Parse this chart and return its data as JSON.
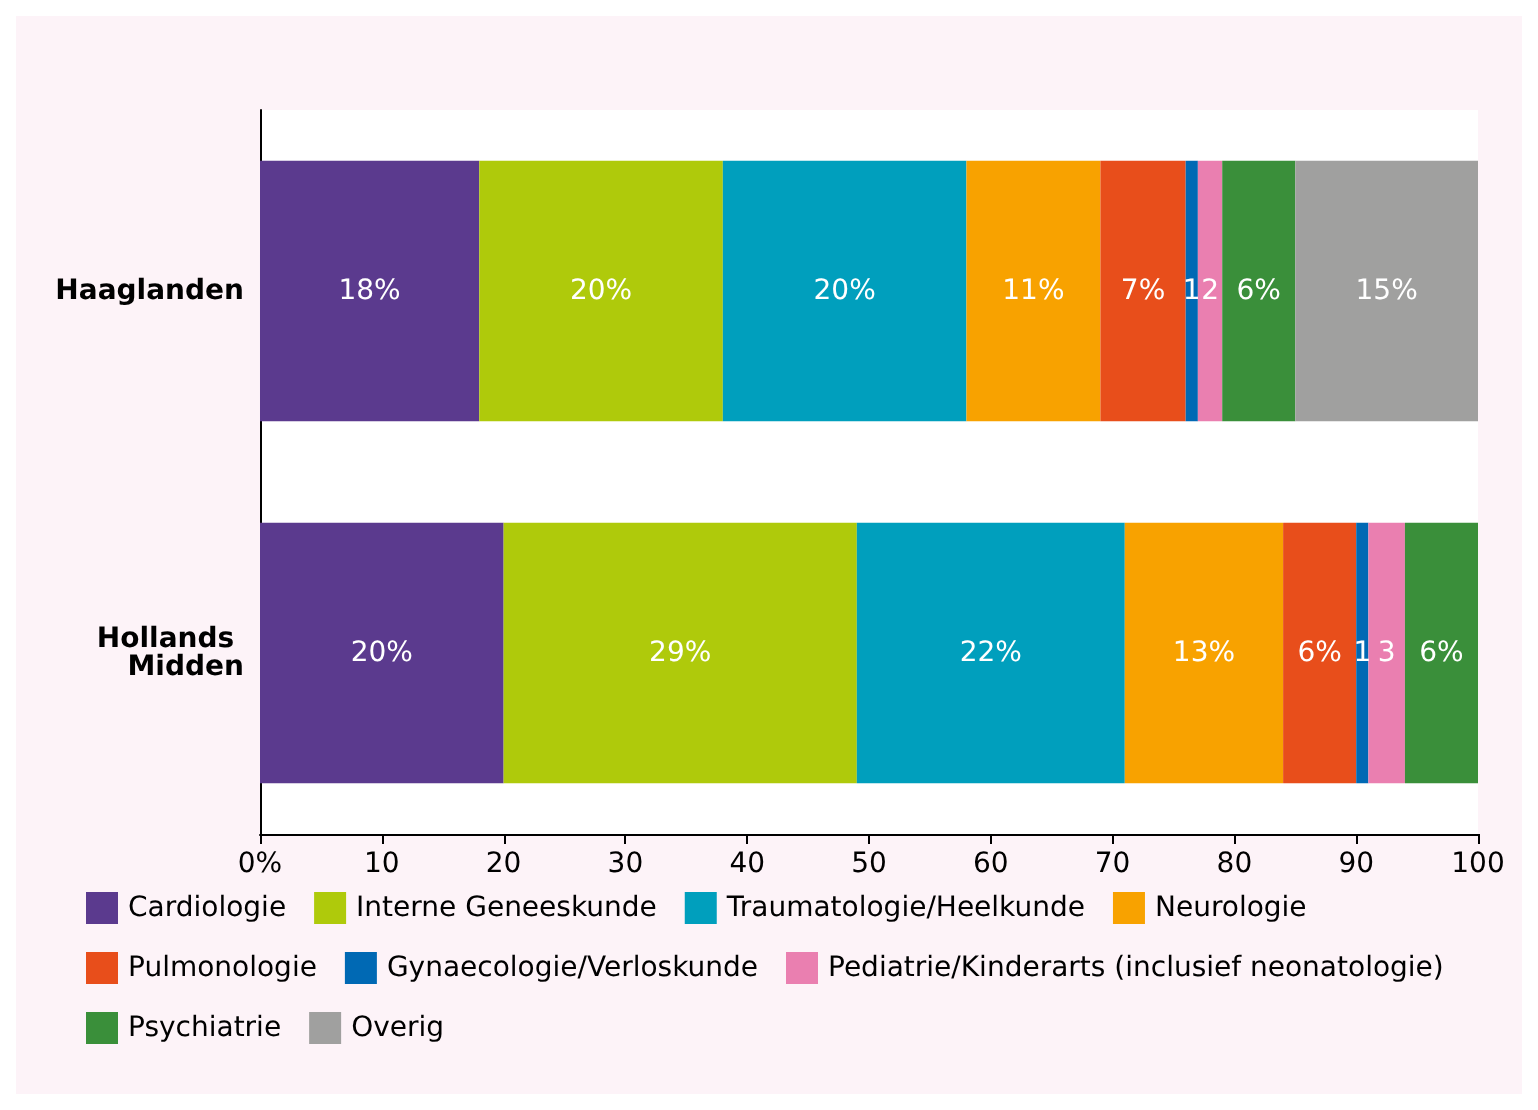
{
  "chart_data": {
    "type": "bar",
    "orientation": "horizontal",
    "stacked": true,
    "categories": [
      "Haaglanden",
      "Hollands Midden"
    ],
    "xlim": [
      0,
      100
    ],
    "xticks": [
      {
        "value": 0,
        "label": "0%"
      },
      10,
      20,
      30,
      40,
      50,
      60,
      70,
      80,
      90,
      100
    ],
    "grid": false,
    "legend": "bottom",
    "series": [
      {
        "name": "Cardiologie",
        "color": "#5b3a8e",
        "values": [
          18,
          20
        ],
        "value_labels": [
          "18%",
          "20%"
        ]
      },
      {
        "name": "Interne Geneeskunde",
        "color": "#afca0b",
        "values": [
          20,
          29
        ],
        "value_labels": [
          "20%",
          "29%"
        ]
      },
      {
        "name": "Traumatologie/Heelkunde",
        "color": "#009fbd",
        "values": [
          20,
          22
        ],
        "value_labels": [
          "20%",
          "22%"
        ]
      },
      {
        "name": "Neurologie",
        "color": "#f8a200",
        "values": [
          11,
          13
        ],
        "value_labels": [
          "11%",
          "13%"
        ]
      },
      {
        "name": "Pulmonologie",
        "color": "#e84e1b",
        "values": [
          7,
          6
        ],
        "value_labels": [
          "7%",
          "6%"
        ]
      },
      {
        "name": "Gynaecologie/Verloskunde",
        "color": "#0069b4",
        "values": [
          1,
          1
        ],
        "value_labels": [
          "1",
          "1"
        ]
      },
      {
        "name": "Pediatrie/Kinderarts (inclusief neonatologie)",
        "color": "#ea7fb0",
        "values": [
          2,
          3
        ],
        "value_labels": [
          "2",
          "3"
        ]
      },
      {
        "name": "Psychiatrie",
        "color": "#3a8f3a",
        "values": [
          6,
          6
        ],
        "value_labels": [
          "6%",
          "6%"
        ]
      },
      {
        "name": "Overig",
        "color": "#a0a09f",
        "values": [
          15,
          0
        ],
        "value_labels": [
          "15%",
          null
        ]
      }
    ]
  }
}
